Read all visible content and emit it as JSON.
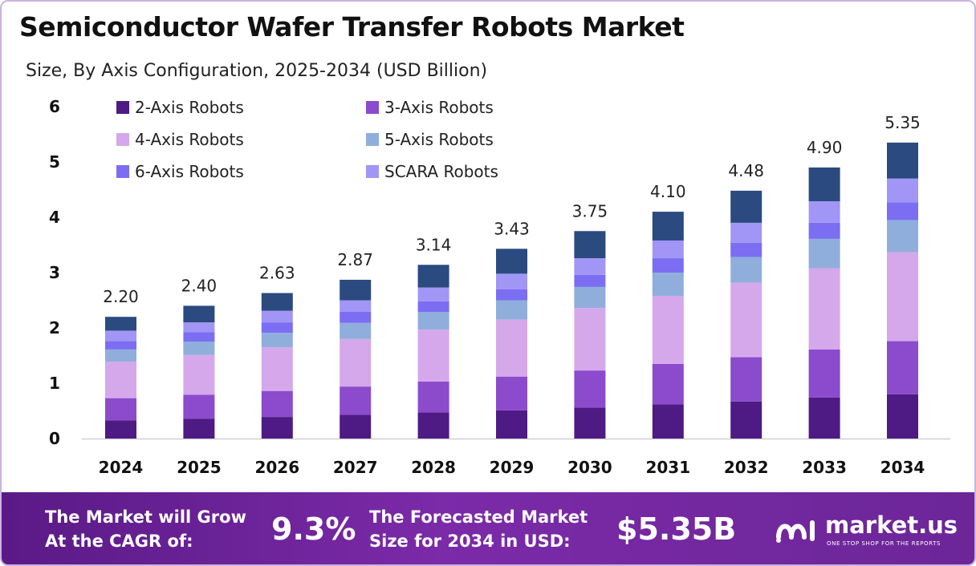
{
  "header": {
    "title": "Semiconductor Wafer Transfer Robots Market",
    "subtitle": "Size, By Axis Configuration, 2025-2034 (USD Billion)"
  },
  "chart_data": {
    "type": "bar",
    "stacked": true,
    "categories": [
      "2024",
      "2025",
      "2026",
      "2027",
      "2028",
      "2029",
      "2030",
      "2031",
      "2032",
      "2033",
      "2034"
    ],
    "totals": [
      2.2,
      2.4,
      2.63,
      2.87,
      3.14,
      3.43,
      3.75,
      4.1,
      4.48,
      4.9,
      5.35
    ],
    "total_labels": [
      "2.20",
      "2.40",
      "2.63",
      "2.87",
      "3.14",
      "3.43",
      "3.75",
      "4.10",
      "4.48",
      "4.90",
      "5.35"
    ],
    "ylim": [
      0,
      6
    ],
    "yticks": [
      "0",
      "1",
      "2",
      "3",
      "4",
      "5",
      "6"
    ],
    "legend_position": "top-left",
    "grid": false,
    "series": [
      {
        "name": "2-Axis Robots",
        "color": "#4e1a84",
        "values": [
          0.33,
          0.36,
          0.39,
          0.43,
          0.47,
          0.51,
          0.56,
          0.62,
          0.67,
          0.74,
          0.8
        ]
      },
      {
        "name": "3-Axis Robots",
        "color": "#8b4bcc",
        "values": [
          0.4,
          0.43,
          0.47,
          0.51,
          0.56,
          0.61,
          0.67,
          0.73,
          0.8,
          0.87,
          0.96
        ]
      },
      {
        "name": "4-Axis Robots",
        "color": "#d4a8ea",
        "values": [
          0.66,
          0.72,
          0.79,
          0.86,
          0.94,
          1.03,
          1.13,
          1.23,
          1.35,
          1.47,
          1.61
        ]
      },
      {
        "name": "5-Axis Robots",
        "color": "#8faedc",
        "values": [
          0.22,
          0.24,
          0.26,
          0.29,
          0.32,
          0.35,
          0.38,
          0.42,
          0.46,
          0.53,
          0.58
        ]
      },
      {
        "name": "6-Axis Robots",
        "color": "#7b6ef2",
        "values": [
          0.15,
          0.17,
          0.19,
          0.2,
          0.19,
          0.2,
          0.22,
          0.26,
          0.26,
          0.29,
          0.32
        ]
      },
      {
        "name": "SCARA Robots",
        "color": "#a196f5",
        "values": [
          0.19,
          0.18,
          0.21,
          0.21,
          0.25,
          0.28,
          0.3,
          0.32,
          0.36,
          0.39,
          0.43
        ]
      },
      {
        "name": "",
        "color": "#2a4a80",
        "values": [
          0.25,
          0.3,
          0.32,
          0.37,
          0.41,
          0.45,
          0.49,
          0.52,
          0.58,
          0.61,
          0.65
        ]
      }
    ]
  },
  "footer": {
    "cagr_label_line1": "The Market will Grow",
    "cagr_label_line2": "At the CAGR of:",
    "cagr_value": "9.3%",
    "forecast_label_line1": "The Forecasted Market",
    "forecast_label_line2": "Size for 2034 in USD:",
    "forecast_value": "$5.35B",
    "brand_name": "market.us",
    "brand_tagline": "ONE STOP SHOP FOR THE REPORTS"
  }
}
